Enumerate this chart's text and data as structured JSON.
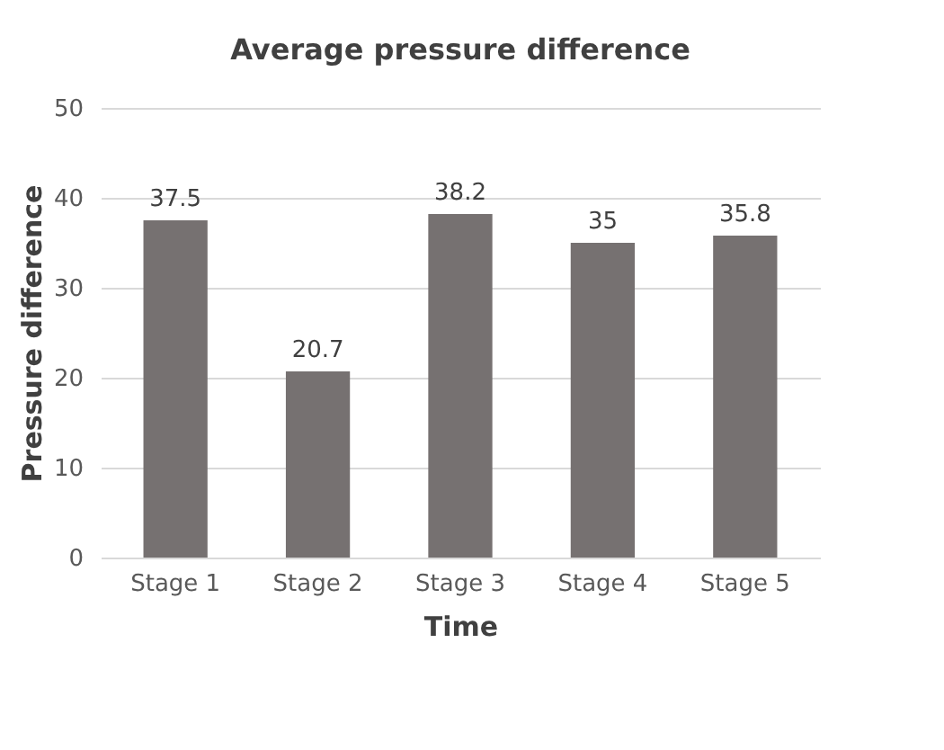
{
  "chart_data": {
    "type": "bar",
    "title": "Average pressure difference",
    "xlabel": "Time",
    "ylabel": "Pressure difference",
    "categories": [
      "Stage 1",
      "Stage 2",
      "Stage 3",
      "Stage 4",
      "Stage 5"
    ],
    "values": [
      37.5,
      20.7,
      38.2,
      35,
      35.8
    ],
    "color": "#767171",
    "ylim": [
      0,
      50
    ],
    "yticks": [
      0,
      10,
      20,
      30,
      40,
      50
    ],
    "grid": "y",
    "data_labels": true
  }
}
